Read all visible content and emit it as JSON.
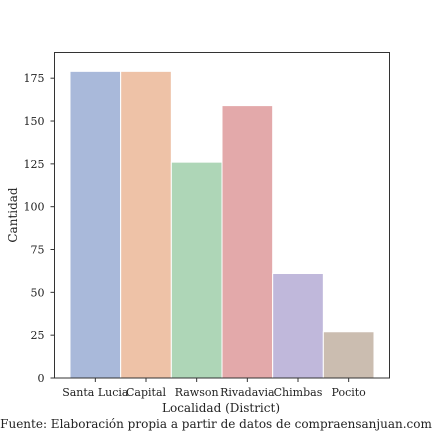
{
  "chart_data": {
    "type": "bar",
    "categories": [
      "Santa Lucia",
      "Capital",
      "Rawson",
      "Rivadavia",
      "Chimbas",
      "Pocito"
    ],
    "values": [
      179,
      179,
      126,
      159,
      61,
      27
    ],
    "colors": [
      "#a9b9da",
      "#eec2a7",
      "#aed6b7",
      "#e3a9aa",
      "#c0b8db",
      "#cbbdb0"
    ],
    "title": "",
    "xlabel": "Localidad (District)",
    "ylabel": "Cantidad",
    "ylim": [
      0,
      190
    ],
    "yticks": [
      0,
      25,
      50,
      75,
      100,
      125,
      150,
      175
    ],
    "grid": false,
    "caption": "Fuente: Elaboración propia a partir de datos de compraensanjuan.com"
  }
}
